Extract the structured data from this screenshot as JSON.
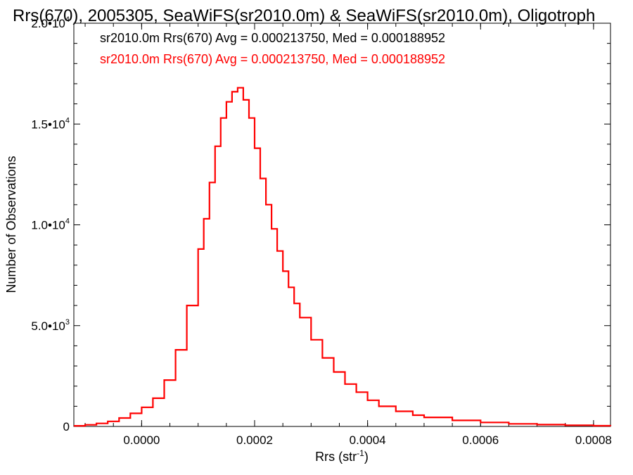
{
  "chart_data": {
    "type": "histogram-step",
    "title": "Rrs(670), 2005305, SeaWiFS(sr2010.0m) & SeaWiFS(sr2010.0m), Oligotroph",
    "xlabel": {
      "base": "Rrs (str",
      "sup": "-1",
      "close": ")"
    },
    "ylabel": "Number of Observations",
    "xlim": [
      -0.00012,
      0.00083
    ],
    "ylim": [
      0,
      20000
    ],
    "grid": false,
    "legend_position": "top-left",
    "x_ticks": [
      {
        "value": 0.0,
        "label": "0.0000"
      },
      {
        "value": 0.0002,
        "label": "0.0002"
      },
      {
        "value": 0.0004,
        "label": "0.0004"
      },
      {
        "value": 0.0006,
        "label": "0.0006"
      },
      {
        "value": 0.0008,
        "label": "0.0008"
      }
    ],
    "y_ticks": [
      {
        "value": 0,
        "mant": "0",
        "exp": ""
      },
      {
        "value": 5000,
        "mant": "5.0•10",
        "exp": "3"
      },
      {
        "value": 10000,
        "mant": "1.0•10",
        "exp": "4"
      },
      {
        "value": 15000,
        "mant": "1.5•10",
        "exp": "4"
      },
      {
        "value": 20000,
        "mant": "2.0•10",
        "exp": "4"
      }
    ],
    "annotations": [
      {
        "text": "sr2010.0m Rrs(670) Avg = 0.000213750, Med = 0.000188952",
        "color": "#000000"
      },
      {
        "text": "sr2010.0m Rrs(670) Avg = 0.000213750, Med = 0.000188952",
        "color": "#ff0000"
      }
    ],
    "series": [
      {
        "color": "#ff0000",
        "x": [
          -0.00012,
          -0.0001,
          -8e-05,
          -6e-05,
          -4e-05,
          -2e-05,
          0.0,
          2e-05,
          4e-05,
          6e-05,
          8e-05,
          0.0001,
          0.00011,
          0.00012,
          0.00013,
          0.00014,
          0.00015,
          0.00016,
          0.00017,
          0.00018,
          0.00019,
          0.0002,
          0.00021,
          0.00022,
          0.00023,
          0.00024,
          0.00025,
          0.00026,
          0.00027,
          0.00028,
          0.0003,
          0.00032,
          0.00034,
          0.00036,
          0.00038,
          0.0004,
          0.00042,
          0.00045,
          0.00048,
          0.0005,
          0.00055,
          0.0006,
          0.00065,
          0.0007,
          0.00075,
          0.0008,
          0.00083
        ],
        "y": [
          30,
          80,
          150,
          250,
          420,
          650,
          950,
          1400,
          2300,
          3800,
          6000,
          8800,
          10300,
          12100,
          13900,
          15300,
          16100,
          16600,
          16800,
          16200,
          15300,
          13800,
          12300,
          11000,
          9800,
          8700,
          7700,
          6900,
          6100,
          5400,
          4300,
          3400,
          2700,
          2100,
          1700,
          1300,
          1000,
          750,
          560,
          450,
          300,
          200,
          130,
          90,
          60,
          35,
          20
        ]
      }
    ]
  }
}
